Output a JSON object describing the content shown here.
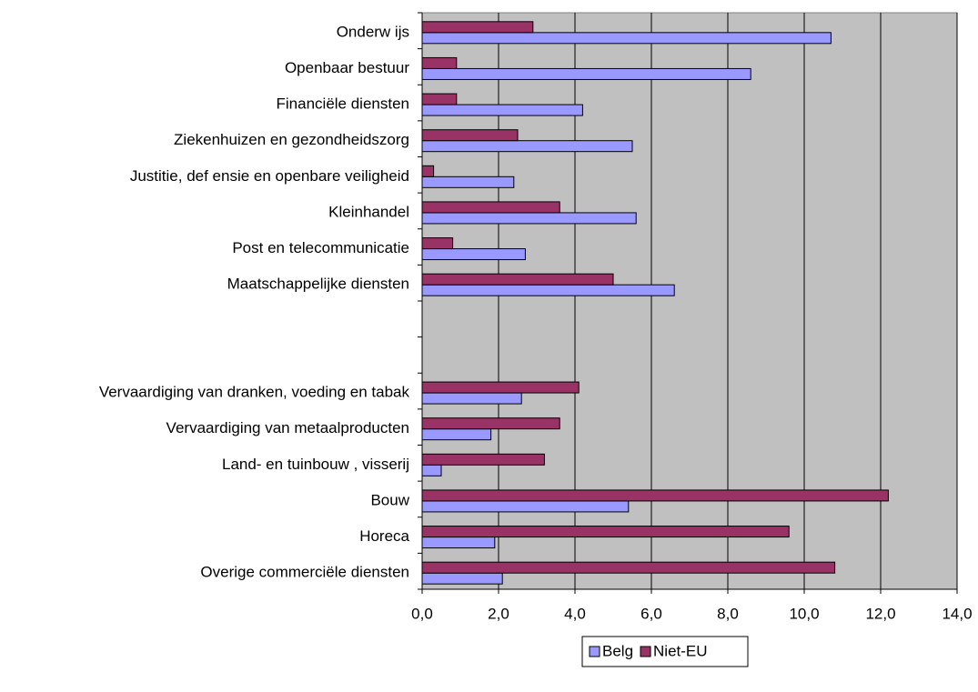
{
  "chart_data": {
    "type": "bar",
    "orientation": "horizontal",
    "categories": [
      "Onderw ijs",
      "Openbaar bestuur",
      "Financiële diensten",
      "Ziekenhuizen en gezondheidszorg",
      "Justitie, def ensie en openbare veiligheid",
      "Kleinhandel",
      "Post en telecommunicatie",
      "Maatschappelijke diensten",
      null,
      "Vervaardiging van dranken, voeding en tabak",
      "Vervaardiging van metaalproducten",
      "Land- en tuinbouw , visserij",
      "Bouw",
      "Horeca",
      "Overige commerciële diensten"
    ],
    "series": [
      {
        "name": "Belg",
        "color": "#9999ff",
        "values": [
          10.7,
          8.6,
          4.2,
          5.5,
          2.4,
          5.6,
          2.7,
          6.6,
          null,
          2.6,
          1.8,
          0.5,
          5.4,
          1.9,
          2.1
        ]
      },
      {
        "name": "Niet-EU",
        "color": "#993366",
        "values": [
          2.9,
          0.9,
          0.9,
          2.5,
          0.3,
          3.6,
          0.8,
          5.0,
          null,
          4.1,
          3.6,
          3.2,
          12.2,
          9.6,
          10.8
        ]
      }
    ],
    "xlim": [
      0,
      14
    ],
    "xticks": [
      {
        "value": 0,
        "label": "0,0"
      },
      {
        "value": 2,
        "label": "2,0"
      },
      {
        "value": 4,
        "label": "4,0"
      },
      {
        "value": 6,
        "label": "6,0"
      },
      {
        "value": 8,
        "label": "8,0"
      },
      {
        "value": 10,
        "label": "10,0"
      },
      {
        "value": 12,
        "label": "12,0"
      },
      {
        "value": 14,
        "label": "14,0"
      }
    ],
    "grid": true,
    "plot_background": "#c0c0c0",
    "legend": "bottom"
  }
}
